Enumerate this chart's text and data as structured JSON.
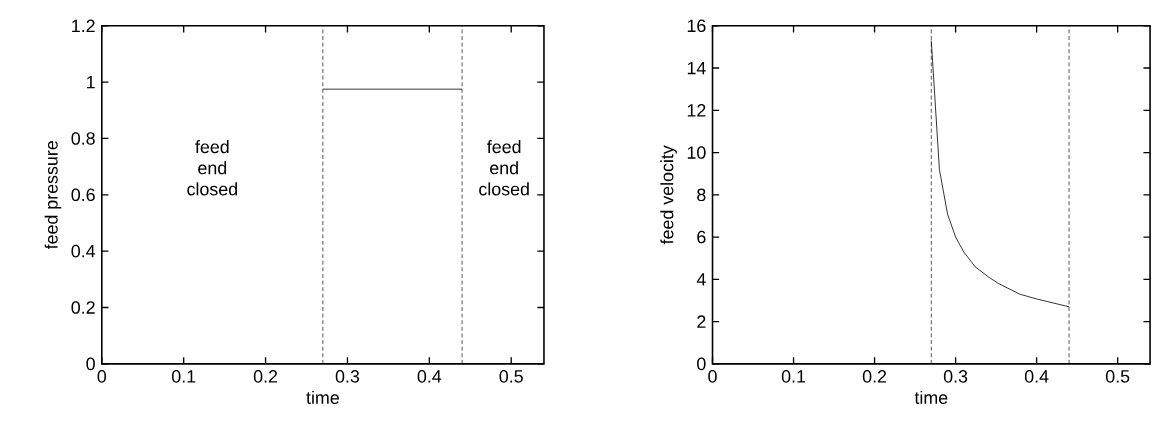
{
  "chart_data": [
    {
      "type": "line",
      "xlabel": "time",
      "ylabel": "feed pressure",
      "xlim": [
        0,
        0.54
      ],
      "ylim": [
        0,
        1.2
      ],
      "xticks": [
        0,
        0.1,
        0.2,
        0.3,
        0.4,
        0.5
      ],
      "yticks": [
        0,
        0.2,
        0.4,
        0.6,
        0.8,
        1,
        1.2
      ],
      "series": [
        {
          "color": "#000000",
          "x": [
            0.27,
            0.44
          ],
          "values": [
            0.975,
            0.975
          ]
        }
      ],
      "ref_lines": [
        {
          "axis": "x",
          "value": 0.27,
          "line_style": "dashed"
        },
        {
          "axis": "x",
          "value": 0.44,
          "line_style": "dashed"
        }
      ],
      "annotations": [
        "feed end closed",
        "feed end closed"
      ]
    },
    {
      "type": "line",
      "xlabel": "time",
      "ylabel": "feed velocity",
      "xlim": [
        0,
        0.54
      ],
      "ylim": [
        0,
        16
      ],
      "xticks": [
        0,
        0.1,
        0.2,
        0.3,
        0.4,
        0.5
      ],
      "yticks": [
        0,
        2,
        4,
        6,
        8,
        10,
        12,
        14,
        16
      ],
      "series": [
        {
          "color": "#000000",
          "x": [
            0.27,
            0.28,
            0.29,
            0.3,
            0.31,
            0.324,
            0.341,
            0.353,
            0.379,
            0.401,
            0.413,
            0.44
          ],
          "values": [
            15.3,
            9.2,
            7.1,
            6.0,
            5.3,
            4.6,
            4.1,
            3.8,
            3.3,
            3.06,
            2.95,
            2.7
          ]
        }
      ],
      "ref_lines": [
        {
          "axis": "x",
          "value": 0.27,
          "line_style": "dashed"
        },
        {
          "axis": "x",
          "value": 0.44,
          "line_style": "dashed"
        }
      ]
    }
  ]
}
